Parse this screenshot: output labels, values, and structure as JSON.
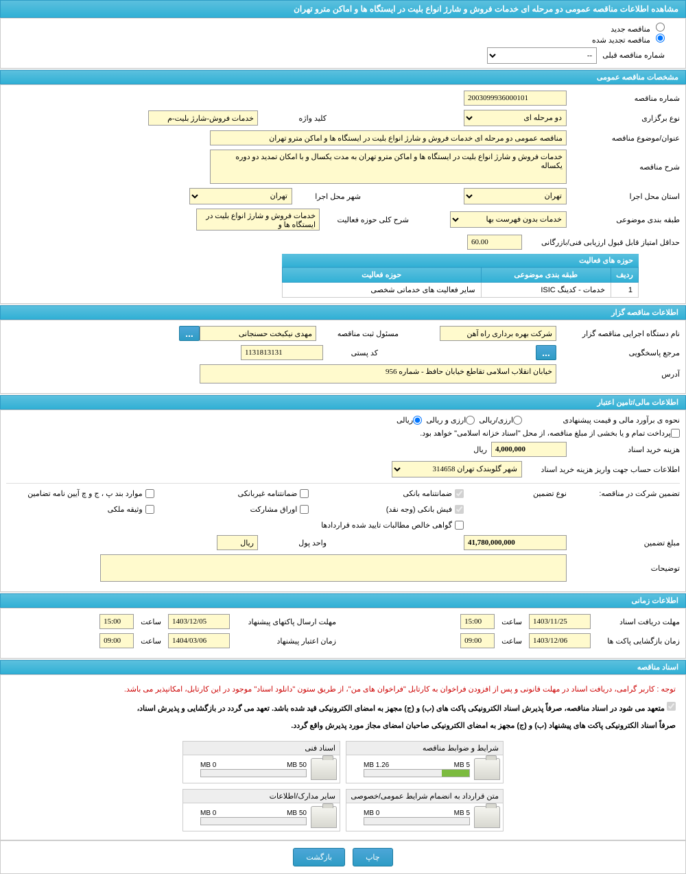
{
  "page_title": "مشاهده اطلاعات مناقصه عمومی دو مرحله ای خدمات فروش و شارژ انواع بلیت در ایستگاه ها و اماکن مترو تهران",
  "radio_new": "مناقصه جدید",
  "radio_renewed": "مناقصه تجدید شده",
  "prev_number_label": "شماره مناقصه قبلی",
  "prev_number_placeholder": "--",
  "sections": {
    "general": "مشخصات مناقصه عمومی",
    "organizer": "اطلاعات مناقصه گزار",
    "financial": "اطلاعات مالی/تامین اعتبار",
    "timing": "اطلاعات زمانی",
    "documents": "اسناد مناقصه"
  },
  "general": {
    "tender_no_label": "شماره مناقصه",
    "tender_no": "2003099936000101",
    "type_label": "نوع برگزاری",
    "type": "دو مرحله ای",
    "keyword_label": "کلید واژه",
    "keyword": "خدمات فروش-شارژ بلیت-م",
    "subject_label": "عنوان/موضوع مناقصه",
    "subject": "مناقصه عمومی دو مرحله ای خدمات فروش و شارژ انواع بلیت در ایستگاه ها و اماکن مترو تهران",
    "desc_label": "شرح مناقصه",
    "desc": "خدمات فروش و شارژ انواع بلیت در ایستگاه ها و اماکن مترو تهران به مدت یکسال و با امکان تمدید دو دوره یکساله",
    "province_label": "استان محل اجرا",
    "province": "تهران",
    "city_label": "شهر محل اجرا",
    "city": "تهران",
    "category_label": "طبقه بندی موضوعی",
    "category": "خدمات بدون فهرست بها",
    "activity_desc_label": "شرح کلی حوزه فعالیت",
    "activity_desc": "خدمات فروش و شارژ انواع بلیت در ایستگاه ها و",
    "min_score_label": "حداقل امتیاز قابل قبول ارزیابی فنی/بازرگانی",
    "min_score": "60.00",
    "activity_table_title": "حوزه های فعالیت",
    "table_cols": {
      "row": "ردیف",
      "cat": "طبقه بندی موضوعی",
      "area": "حوزه فعالیت"
    },
    "table_row": {
      "no": "1",
      "cat": "خدمات - کدینگ ISIC",
      "area": "سایر فعالیت های خدماتی شخصی"
    }
  },
  "organizer": {
    "org_label": "نام دستگاه اجرایی مناقصه گزار",
    "org": "شرکت بهره برداری راه آهن",
    "reg_officer_label": "مسئول ثبت مناقصه",
    "reg_officer": "مهدی نیکبخت حسنجانی",
    "responder_label": "مرجع پاسخگویی",
    "postal_label": "کد پستی",
    "postal": "1131813131",
    "address_label": "آدرس",
    "address": "خیابان انقلاب اسلامی تقاطع خیابان حافظ - شماره 956",
    "btn_dots": "..."
  },
  "financial": {
    "method_label": "نحوه ی برآورد مالی و قیمت پیشنهادی",
    "currency_label": "ارزی/ریالی",
    "currency_options": {
      "fx": "ارزی و ریالی",
      "rial": "ریالی"
    },
    "payment_note": "پرداخت تمام و یا بخشی از مبلغ مناقصه، از محل \"اسناد خزانه اسلامی\" خواهد بود.",
    "doc_fee_label": "هزینه خرید اسناد",
    "doc_fee": "4,000,000",
    "rial_text": "ریال",
    "account_label": "اطلاعات حساب جهت واریز هزینه خرید اسناد",
    "account": "شهر گلوبندک تهران 314658",
    "guarantee_label": "تضمین شرکت در مناقصه:",
    "guarantee_type_label": "نوع تضمین",
    "opts": {
      "bank_guarantee": "ضمانتنامه بانکی",
      "nonbank_guarantee": "ضمانتنامه غیربانکی",
      "bylaw_items": "موارد بند پ ، ج و چ آیین نامه تضامین",
      "cash": "فیش بانکی (وجه نقد)",
      "bonds": "اوراق مشارکت",
      "property": "وثیقه ملکی",
      "receivables": "گواهی خالص مطالبات تایید شده قراردادها"
    },
    "amount_label": "مبلغ تضمین",
    "amount": "41,780,000,000",
    "unit_label": "واحد پول",
    "unit": "ریال",
    "notes_label": "توضیحات"
  },
  "timing": {
    "receive_deadline_label": "مهلت دریافت اسناد",
    "receive_date": "1403/11/25",
    "receive_time": "15:00",
    "submit_deadline_label": "مهلت ارسال پاکتهای پیشنهاد",
    "submit_date": "1403/12/05",
    "submit_time": "15:00",
    "open_label": "زمان بازگشایی پاکت ها",
    "open_date": "1403/12/06",
    "open_time": "09:00",
    "validity_label": "زمان اعتبار پیشنهاد",
    "validity_date": "1404/03/06",
    "validity_time": "09:00",
    "time_label": "ساعت"
  },
  "documents": {
    "notice_red": "توجه : کاربر گرامی، دریافت اسناد در مهلت قانونی و پس از افزودن فراخوان به کارتابل \"فراخوان های من\"، از طریق ستون \"دانلود اسناد\" موجود در این کارتابل، امکانپذیر می باشد.",
    "commitment_line1": "متعهد می شود در اسناد مناقصه، صرفاً پذیرش اسناد الکترونیکی پاکت های (ب) و (ج) مجهز به امضای الکترونیکی قید شده باشد. تعهد می گردد در بازگشایی و پذیرش اسناد،",
    "commitment_line2": "صرفاً اسناد الکترونیکی پاکت های پیشنهاد (ب) و (ج) مجهز به امضای الکترونیکی صاحبان امضای مجاز مورد پذیرش واقع گردد.",
    "docs": [
      {
        "title": "شرایط و ضوابط مناقصه",
        "used": "1.26 MB",
        "max": "5 MB",
        "pct": 26
      },
      {
        "title": "اسناد فنی",
        "used": "0 MB",
        "max": "50 MB",
        "pct": 0
      },
      {
        "title": "متن قرارداد به انضمام شرایط عمومی/خصوصی",
        "used": "0 MB",
        "max": "5 MB",
        "pct": 0
      },
      {
        "title": "سایر مدارک/اطلاعات",
        "used": "0 MB",
        "max": "50 MB",
        "pct": 0
      }
    ]
  },
  "footer": {
    "print": "چاپ",
    "back": "بازگشت"
  }
}
